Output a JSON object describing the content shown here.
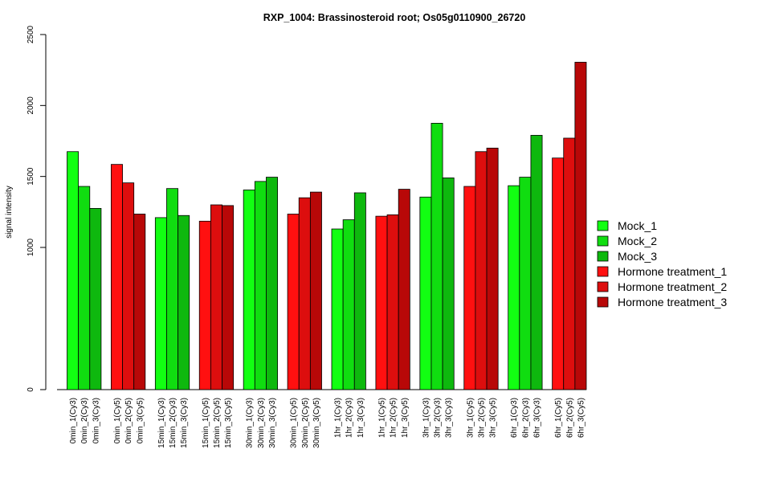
{
  "chart_data": {
    "type": "bar",
    "title": "RXP_1004: Brassinosteroid root; Os05g0110900_26720",
    "ylabel": "signal intensity",
    "xlabel": "",
    "ylim": [
      0,
      2500
    ],
    "y_ticks": [
      0,
      1000,
      1500,
      2000,
      2500
    ],
    "grid": false,
    "legend_position": "right",
    "groups": [
      {
        "color_key": "green",
        "labels": [
          "0min_1(Cy3)",
          "0min_2(Cy3)",
          "0min_3(Cy3)"
        ],
        "values": [
          1675,
          1430,
          1275
        ]
      },
      {
        "color_key": "red",
        "labels": [
          "0min_1(Cy5)",
          "0min_2(Cy5)",
          "0min_3(Cy5)"
        ],
        "values": [
          1585,
          1455,
          1235
        ]
      },
      {
        "color_key": "green",
        "labels": [
          "15min_1(Cy3)",
          "15min_2(Cy3)",
          "15min_3(Cy3)"
        ],
        "values": [
          1210,
          1415,
          1225
        ]
      },
      {
        "color_key": "red",
        "labels": [
          "15min_1(Cy5)",
          "15min_2(Cy5)",
          "15min_3(Cy5)"
        ],
        "values": [
          1185,
          1300,
          1295
        ]
      },
      {
        "color_key": "green",
        "labels": [
          "30min_1(Cy3)",
          "30min_2(Cy3)",
          "30min_3(Cy3)"
        ],
        "values": [
          1405,
          1465,
          1495
        ]
      },
      {
        "color_key": "red",
        "labels": [
          "30min_1(Cy5)",
          "30min_2(Cy5)",
          "30min_3(Cy5)"
        ],
        "values": [
          1235,
          1350,
          1390
        ]
      },
      {
        "color_key": "green",
        "labels": [
          "1hr_1(Cy3)",
          "1hr_2(Cy3)",
          "1hr_3(Cy3)"
        ],
        "values": [
          1130,
          1195,
          1385
        ]
      },
      {
        "color_key": "red",
        "labels": [
          "1hr_1(Cy5)",
          "1hr_2(Cy5)",
          "1hr_3(Cy5)"
        ],
        "values": [
          1220,
          1230,
          1410
        ]
      },
      {
        "color_key": "green",
        "labels": [
          "3hr_1(Cy3)",
          "3hr_2(Cy3)",
          "3hr_3(Cy3)"
        ],
        "values": [
          1355,
          1875,
          1490
        ]
      },
      {
        "color_key": "red",
        "labels": [
          "3hr_1(Cy5)",
          "3hr_2(Cy5)",
          "3hr_3(Cy5)"
        ],
        "values": [
          1430,
          1675,
          1700
        ]
      },
      {
        "color_key": "green",
        "labels": [
          "6hr_1(Cy3)",
          "6hr_2(Cy3)",
          "6hr_3(Cy3)"
        ],
        "values": [
          1435,
          1495,
          1790
        ]
      },
      {
        "color_key": "red",
        "labels": [
          "6hr_1(Cy5)",
          "6hr_2(Cy5)",
          "6hr_3(Cy5)"
        ],
        "values": [
          1630,
          1770,
          2305
        ]
      }
    ],
    "palette": {
      "green": [
        "#12FF12",
        "#10DD10",
        "#0EB80E"
      ],
      "red": [
        "#FF1010",
        "#DD0E0E",
        "#B80808"
      ]
    },
    "legend": [
      {
        "label": "Mock_1",
        "color": "#12FF12"
      },
      {
        "label": "Mock_2",
        "color": "#10DD10"
      },
      {
        "label": "Mock_3",
        "color": "#0EB80E"
      },
      {
        "label": "Hormone treatment_1",
        "color": "#FF1010"
      },
      {
        "label": "Hormone treatment_2",
        "color": "#DD0E0E"
      },
      {
        "label": "Hormone treatment_3",
        "color": "#B80808"
      }
    ]
  }
}
